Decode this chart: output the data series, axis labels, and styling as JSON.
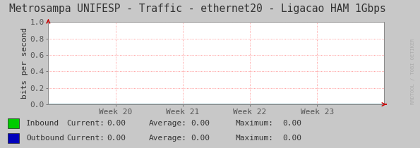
{
  "title": "Metrosampa UNIFESP - Traffic - ethernet20 - Ligacao HAM 1Gbps",
  "ylabel": "bits per second",
  "ylim": [
    0.0,
    1.0
  ],
  "yticks": [
    0.0,
    0.2,
    0.4,
    0.6,
    0.8,
    1.0
  ],
  "ytick_labels": [
    "0.0",
    "0.2",
    "0.4",
    "0.6",
    "0.8",
    "1.0"
  ],
  "xlabels": [
    "Week 20",
    "Week 21",
    "Week 22",
    "Week 23"
  ],
  "outer_bg_color": "#c8c8c8",
  "plot_bg_color": "#ffffff",
  "grid_color": "#ff8080",
  "border_color": "#888888",
  "title_color": "#333333",
  "arrow_color": "#cc0000",
  "inbound_color": "#00cc00",
  "outbound_color": "#0000cc",
  "legend_items": [
    {
      "label": "Inbound",
      "current": "0.00",
      "average": "0.00",
      "maximum": "0.00",
      "color": "#00cc00"
    },
    {
      "label": "Outbound",
      "current": "0.00",
      "average": "0.00",
      "maximum": "0.00",
      "color": "#0000bb"
    }
  ],
  "watermark": "RRDTOOL / TOBI OETIKER",
  "title_fontsize": 10.5,
  "tick_fontsize": 8,
  "legend_fontsize": 8,
  "ylabel_fontsize": 8
}
